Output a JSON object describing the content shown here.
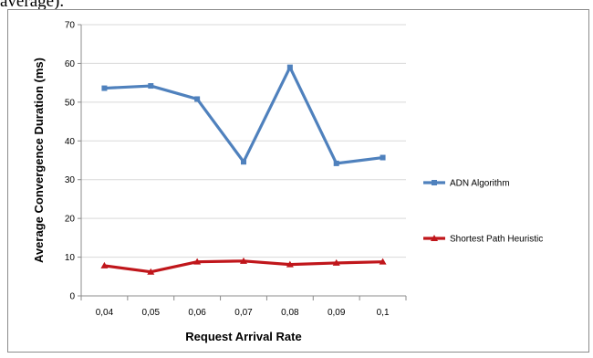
{
  "page": {
    "top_text": "average)."
  },
  "chart_data": {
    "type": "line",
    "title": "",
    "xlabel": "Request Arrival Rate",
    "ylabel": "Average Convergence Duration  (ms)",
    "categories": [
      "0,04",
      "0,05",
      "0,06",
      "0,07",
      "0,08",
      "0,09",
      "0,1"
    ],
    "ylim": [
      0,
      70
    ],
    "yticks": [
      0,
      10,
      20,
      30,
      40,
      50,
      60,
      70
    ],
    "grid": "horizontal",
    "legend": "right",
    "series": [
      {
        "name": "ADN Algorithm",
        "values": [
          53.6,
          54.2,
          50.8,
          34.6,
          59.0,
          34.2,
          35.7
        ],
        "color": "#4f81bd",
        "marker": "square"
      },
      {
        "name": "Shortest Path Heuristic",
        "values": [
          7.8,
          6.2,
          8.8,
          9.0,
          8.1,
          8.5,
          8.8
        ],
        "color": "#c0161b",
        "marker": "triangle"
      }
    ]
  }
}
